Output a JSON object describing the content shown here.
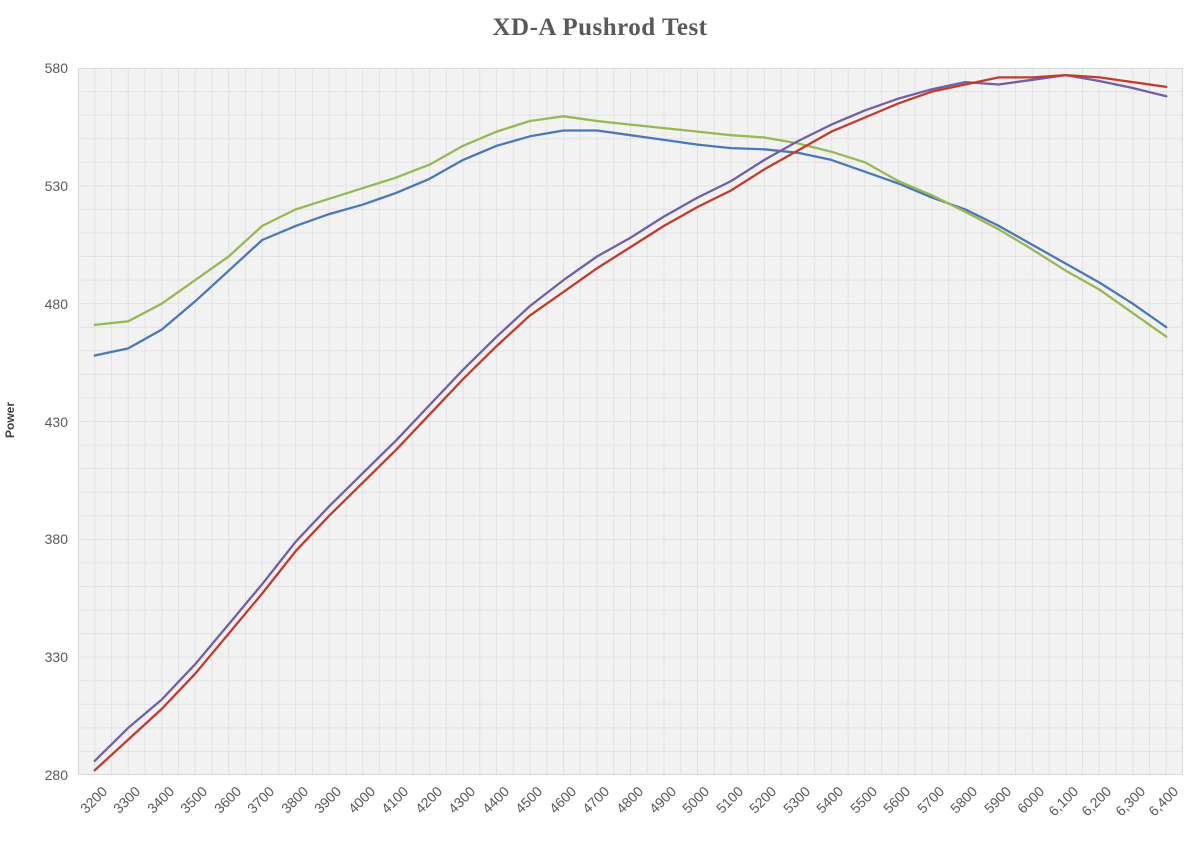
{
  "chart_data": {
    "type": "line",
    "title": "XD-A Pushrod Test",
    "xlabel": "",
    "ylabel": "Power",
    "ylim": [
      280,
      580
    ],
    "y_tick_step": 50,
    "y_grid_step": 10,
    "x_minor_divisions_per_category": 2,
    "grid": true,
    "legend_position": "none",
    "categories": [
      "3200",
      "3300",
      "3400",
      "3500",
      "3600",
      "3700",
      "3800",
      "3900",
      "4000",
      "4100",
      "4200",
      "4300",
      "4400",
      "4500",
      "4600",
      "4700",
      "4800",
      "4900",
      "5000",
      "5100",
      "5200",
      "5300",
      "5400",
      "5500",
      "5600",
      "5700",
      "5800",
      "5900",
      "6000",
      "6,100",
      "6,200",
      "6,300",
      "6,400"
    ],
    "series": [
      {
        "id": "series-1-blue",
        "color": "#4979b6",
        "values": [
          458,
          461,
          469,
          481,
          494,
          507,
          513,
          518,
          522,
          527,
          533,
          541,
          547,
          551,
          553.5,
          553.5,
          551.5,
          549.5,
          547.5,
          546,
          545.5,
          544,
          541,
          536,
          531,
          525,
          520,
          513,
          505,
          497,
          489,
          480,
          470
        ]
      },
      {
        "id": "series-2-green",
        "color": "#97b855",
        "values": [
          471,
          472.5,
          480,
          490,
          500,
          513,
          520,
          524.5,
          529,
          533.5,
          539,
          547,
          553,
          557.5,
          559.5,
          557.5,
          556,
          554.5,
          553,
          551.5,
          550.5,
          548,
          544.5,
          540,
          532,
          526,
          519,
          511.5,
          503,
          494,
          486,
          476,
          466
        ]
      },
      {
        "id": "series-3-purple",
        "color": "#7060a8",
        "values": [
          286,
          300,
          312,
          327,
          344,
          361,
          379,
          394,
          408,
          422,
          437,
          452,
          466,
          479,
          490,
          500,
          508,
          517,
          525,
          532,
          541,
          549,
          556,
          562,
          567,
          571,
          574,
          573,
          575,
          577,
          574.5,
          571.5,
          568
        ]
      },
      {
        "id": "series-4-red",
        "color": "#c23b2b",
        "values": [
          282,
          295,
          308,
          323,
          340,
          357,
          375,
          390,
          404,
          418,
          433,
          448,
          462,
          475,
          485,
          495,
          504,
          513,
          521,
          528,
          537,
          545,
          553,
          559,
          565,
          570,
          573,
          576,
          576,
          577,
          576,
          574,
          572
        ]
      }
    ],
    "styles": {
      "title_color": "#595959",
      "tick_color": "#595959",
      "plot_background": "#f2f2f2",
      "grid_color": "#e2e2e2",
      "plot_border": "#d9d9d9",
      "page_background": "#ffffff"
    }
  }
}
